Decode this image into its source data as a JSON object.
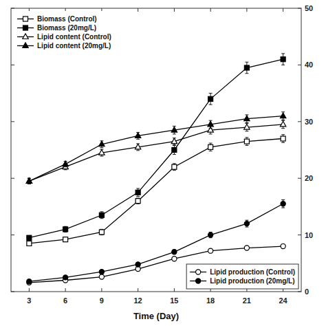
{
  "chart_data": {
    "type": "line",
    "x_label": "Time (Day)",
    "x": [
      3,
      6,
      9,
      12,
      15,
      18,
      21,
      24
    ],
    "xlim": [
      1.5,
      25.5
    ],
    "xticks": [
      3,
      6,
      9,
      12,
      15,
      18,
      21,
      24
    ],
    "ylim": [
      0,
      50
    ],
    "yticks": [
      0,
      10,
      20,
      30,
      40,
      50
    ],
    "y2lim": [
      0,
      50
    ],
    "y2ticks": [
      0,
      10,
      20,
      30,
      40,
      50
    ],
    "grid": false,
    "legend": "upper left",
    "series": [
      {
        "name": "Biomass (Control)",
        "color": "#000000",
        "marker": "square-open",
        "values": [
          8.5,
          9.2,
          10.5,
          16.0,
          22.0,
          25.5,
          26.5,
          27.0
        ],
        "errors": [
          0.4,
          0.4,
          0.5,
          0.5,
          0.6,
          0.7,
          0.7,
          0.7
        ]
      },
      {
        "name": "Biomass (20mg/L)",
        "color": "#000000",
        "marker": "square",
        "values": [
          9.5,
          11.0,
          13.5,
          17.5,
          25.0,
          34.0,
          39.5,
          41.0
        ],
        "errors": [
          0.4,
          0.5,
          0.6,
          0.7,
          0.8,
          1.0,
          1.0,
          1.0
        ]
      },
      {
        "name": "Lipid content (Control)",
        "color": "#000000",
        "marker": "triangle-open",
        "values": [
          19.5,
          22.0,
          24.5,
          25.5,
          26.5,
          28.5,
          29.0,
          29.5
        ],
        "errors": [
          0.5,
          0.5,
          0.6,
          0.6,
          0.6,
          0.7,
          0.7,
          0.7
        ]
      },
      {
        "name": "Lipid content (20mg/L)",
        "color": "#000000",
        "marker": "triangle",
        "values": [
          19.5,
          22.5,
          26.0,
          27.5,
          28.5,
          29.5,
          30.5,
          31.0
        ],
        "errors": [
          0.5,
          0.5,
          0.6,
          0.6,
          0.7,
          0.7,
          0.7,
          0.7
        ]
      },
      {
        "name": "Lipid production (Control)",
        "color": "#000000",
        "marker": "circle-open",
        "axis": "y2",
        "values": [
          1.6,
          2.0,
          2.6,
          4.0,
          5.8,
          7.2,
          7.7,
          8.0
        ],
        "errors": [
          0.1,
          0.1,
          0.15,
          0.2,
          0.3,
          0.3,
          0.3,
          0.35
        ]
      },
      {
        "name": "Lipid production (20mg/L)",
        "color": "#000000",
        "marker": "circle",
        "axis": "y2",
        "values": [
          1.8,
          2.5,
          3.5,
          4.8,
          7.0,
          10.0,
          12.0,
          15.5
        ],
        "errors": [
          0.1,
          0.15,
          0.2,
          0.3,
          0.4,
          0.5,
          0.6,
          0.7
        ]
      }
    ]
  }
}
